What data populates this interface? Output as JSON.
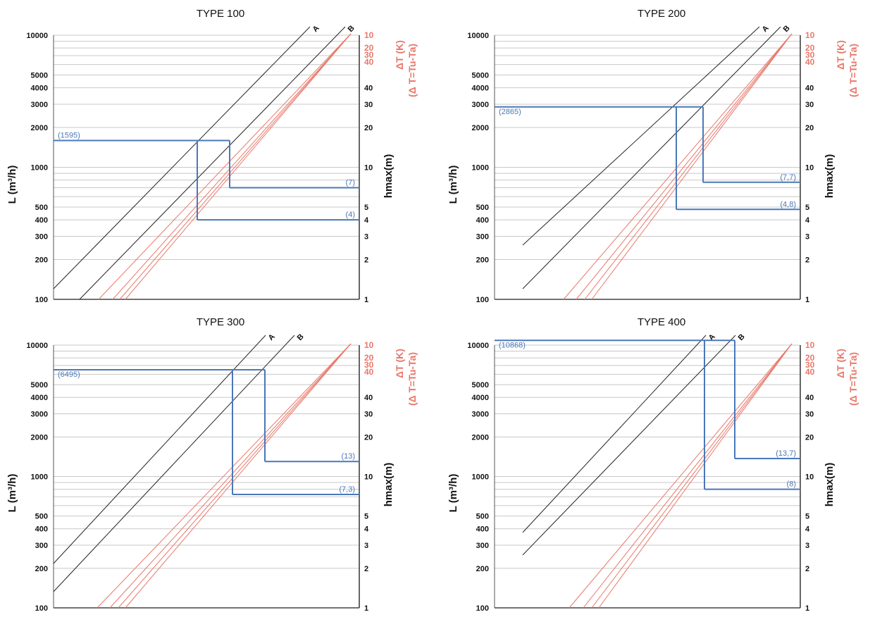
{
  "colors": {
    "blue": "#4a78b8",
    "red": "#e8786a",
    "grid": "#c8c8c8",
    "dark": "#222222"
  },
  "chart_data": [
    {
      "type": "line",
      "title": "TYPE 100",
      "ylabel": "L (m³/h)",
      "y2label": "hmax(m)",
      "y3label": "ΔT (K)",
      "y3sublabel": "(Δ T=Tu-Ta)",
      "yscale": "log",
      "ylim": [
        100,
        10000
      ],
      "yticks": [
        "100",
        "200",
        "300",
        "400",
        "500",
        "1000",
        "2000",
        "3000",
        "4000",
        "5000",
        "10000"
      ],
      "hticks": [
        "1",
        "2",
        "3",
        "4",
        "5",
        "10",
        "20",
        "30",
        "40"
      ],
      "dtticks": [
        "10",
        "20",
        "30",
        "40"
      ],
      "lines": [
        {
          "name": "A",
          "color": "dark",
          "L_at_bottom_frac": 0.0,
          "L_start": 100
        },
        {
          "name": "B",
          "color": "dark",
          "L_start": 100
        }
      ],
      "flow_value": "(1595)",
      "results": [
        "(7)",
        "(4)"
      ],
      "flow": 1595,
      "h_values": [
        7,
        4
      ]
    },
    {
      "type": "line",
      "title": "TYPE 200",
      "ylabel": "L (m³/h)",
      "y2label": "hmax(m)",
      "y3label": "ΔT (K)",
      "y3sublabel": "(Δ T=Tu-Ta)",
      "yscale": "log",
      "ylim": [
        100,
        10000
      ],
      "yticks": [
        "100",
        "200",
        "300",
        "400",
        "500",
        "1000",
        "2000",
        "3000",
        "4000",
        "5000",
        "10000"
      ],
      "hticks": [
        "1",
        "2",
        "3",
        "4",
        "5",
        "10",
        "20",
        "30",
        "40"
      ],
      "dtticks": [
        "10",
        "20",
        "30",
        "40"
      ],
      "lines": [
        {
          "name": "A",
          "color": "dark"
        },
        {
          "name": "B",
          "color": "dark"
        }
      ],
      "flow_value": "(2865)",
      "results": [
        "(7,7)",
        "(4,8)"
      ],
      "flow": 2865,
      "h_values": [
        7.7,
        4.8
      ]
    },
    {
      "type": "line",
      "title": "TYPE 300",
      "ylabel": "L (m³/h)",
      "y2label": "hmax(m)",
      "y3label": "ΔT (K)",
      "y3sublabel": "(Δ T=Tu-Ta)",
      "yscale": "log",
      "ylim": [
        100,
        10000
      ],
      "yticks": [
        "100",
        "200",
        "300",
        "400",
        "500",
        "1000",
        "2000",
        "3000",
        "4000",
        "5000",
        "10000"
      ],
      "hticks": [
        "1",
        "2",
        "3",
        "4",
        "5",
        "10",
        "20",
        "30",
        "40"
      ],
      "dtticks": [
        "10",
        "20",
        "30",
        "40"
      ],
      "lines": [
        {
          "name": "A",
          "color": "dark"
        },
        {
          "name": "B",
          "color": "dark"
        }
      ],
      "flow_value": "(6495)",
      "results": [
        "(13)",
        "(7,3)"
      ],
      "flow": 6495,
      "h_values": [
        13,
        7.3
      ]
    },
    {
      "type": "line",
      "title": "TYPE 400",
      "ylabel": "L (m³/h)",
      "y2label": "hmax(m)",
      "y3label": "ΔT (K)",
      "y3sublabel": "(Δ T=Tu-Ta)",
      "yscale": "log",
      "ylim": [
        100,
        10000
      ],
      "yticks": [
        "100",
        "200",
        "300",
        "400",
        "500",
        "1000",
        "2000",
        "3000",
        "4000",
        "5000",
        "10000"
      ],
      "hticks": [
        "1",
        "2",
        "3",
        "4",
        "5",
        "10",
        "20",
        "30",
        "40"
      ],
      "dtticks": [
        "10",
        "20",
        "30",
        "40"
      ],
      "lines": [
        {
          "name": "A",
          "color": "dark"
        },
        {
          "name": "B",
          "color": "dark"
        }
      ],
      "flow_value": "(10868)",
      "results": [
        "(13,7)",
        "(8)"
      ],
      "flow": 10868,
      "h_values": [
        13.7,
        8
      ]
    }
  ]
}
